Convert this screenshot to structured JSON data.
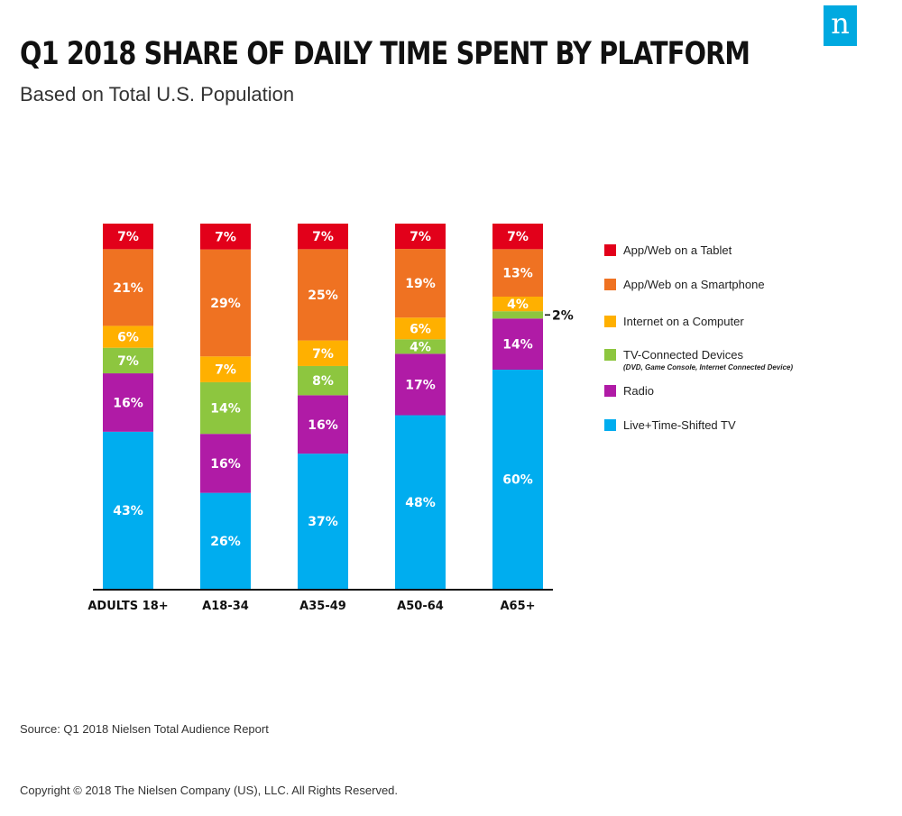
{
  "title": "Q1 2018 SHARE OF DAILY TIME SPENT BY PLATFORM",
  "subtitle": "Based on Total U.S. Population",
  "logo_text": "n",
  "source": "Source: Q1 2018 Nielsen Total Audience Report",
  "copyright": "Copyright © 2018 The Nielsen Company (US), LLC. All Rights Reserved.",
  "chart_data": {
    "type": "bar",
    "stacked": true,
    "title": "Q1 2018 SHARE OF DAILY TIME SPENT BY PLATFORM",
    "subtitle": "Based on Total U.S. Population",
    "categories": [
      "ADULTS 18+",
      "A18-34",
      "A35-49",
      "A50-64",
      "A65+"
    ],
    "unit": "%",
    "legend_position": "right",
    "grid": false,
    "series": [
      {
        "name": "Live+Time-Shifted TV",
        "color": "#00adef",
        "values": [
          43,
          26,
          37,
          48,
          60
        ]
      },
      {
        "name": "Radio",
        "color": "#b01ba6",
        "values": [
          16,
          16,
          16,
          17,
          14
        ]
      },
      {
        "name": "TV-Connected Devices",
        "note": "(DVD, Game Console, Internet Connected Device)",
        "color": "#8dc63f",
        "values": [
          7,
          14,
          8,
          4,
          2
        ]
      },
      {
        "name": "Internet on a Computer",
        "color": "#ffb000",
        "values": [
          6,
          7,
          7,
          6,
          4
        ]
      },
      {
        "name": "App/Web on a Smartphone",
        "color": "#ef7222",
        "values": [
          21,
          29,
          25,
          19,
          13
        ]
      },
      {
        "name": "App/Web on a Tablet",
        "color": "#e2001a",
        "values": [
          7,
          7,
          7,
          7,
          7
        ]
      }
    ],
    "outside_labels": [
      {
        "category": "A65+",
        "series": "TV-Connected Devices",
        "label": "2%"
      }
    ]
  }
}
